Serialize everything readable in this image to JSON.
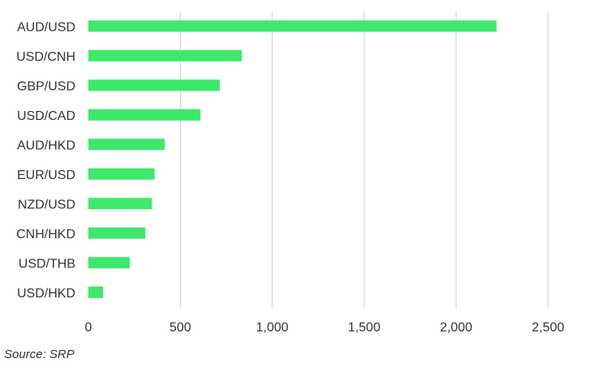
{
  "chart_data": {
    "type": "bar",
    "orientation": "horizontal",
    "categories": [
      "AUD/USD",
      "USD/CNH",
      "GBP/USD",
      "USD/CAD",
      "AUD/HKD",
      "EUR/USD",
      "NZD/USD",
      "CNH/HKD",
      "USD/THB",
      "USD/HKD"
    ],
    "values": [
      2220,
      835,
      715,
      610,
      415,
      360,
      345,
      310,
      225,
      80
    ],
    "xlim": [
      0,
      2500
    ],
    "xticks": [
      0,
      500,
      1000,
      1500,
      2000,
      2500
    ],
    "xtick_labels": [
      "0",
      "500",
      "1,000",
      "1,500",
      "2,000",
      "2,500"
    ],
    "grid": "vertical",
    "bar_color": "#3ee86b",
    "grid_color": "#cccccc"
  },
  "source": "Source: SRP"
}
